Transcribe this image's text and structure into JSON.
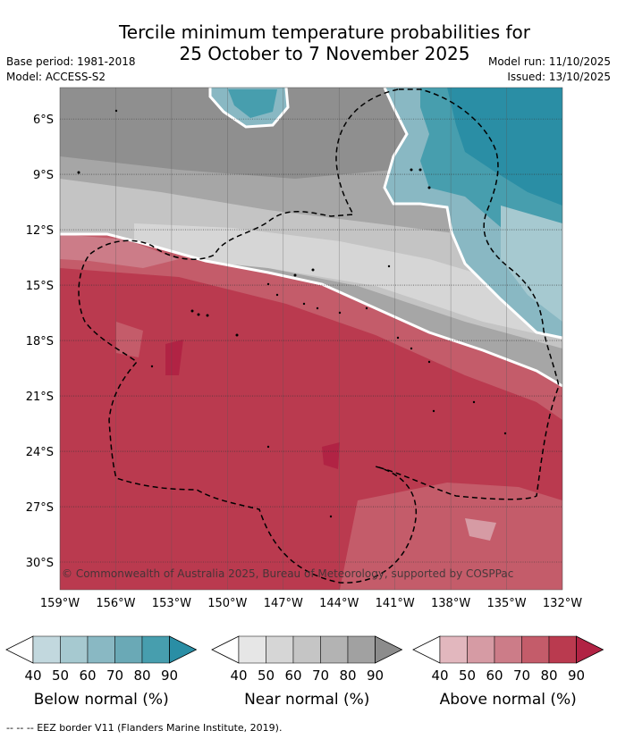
{
  "title_line1": "Tercile minimum temperature probabilities for",
  "title_line2": "25 October to 7 November 2025",
  "base_period": "Base period: 1981-2018",
  "model": "Model: ACCESS-S2",
  "model_run": "Model run: 11/10/2025",
  "issued": "Issued: 13/10/2025",
  "copyright": "© Commonwealth of Australia 2025, Bureau of Meteorology, supported by COSPPac",
  "footer": "--  --  -- EEZ border V11 (Flanders Marine Institute, 2019).",
  "map_data": {
    "lon_labels": [
      "159°W",
      "156°W",
      "153°W",
      "150°W",
      "147°W",
      "144°W",
      "141°W",
      "138°W",
      "135°W",
      "132°W"
    ],
    "lat_labels": [
      "6°S",
      "9°S",
      "12°S",
      "15°S",
      "18°S",
      "21°S",
      "24°S",
      "27°S",
      "30°S"
    ],
    "lon_range": [
      -159,
      -132
    ],
    "lat_range": [
      -31.5,
      -4.3
    ]
  },
  "colorbars": [
    {
      "name": "below",
      "label": "Below normal (%)",
      "ticks": [
        "40",
        "50",
        "60",
        "70",
        "80",
        "90"
      ],
      "colors": [
        "#c2d8de",
        "#a6c9d0",
        "#89b8c3",
        "#6aa9b6",
        "#479eae",
        "#2a8ea5"
      ]
    },
    {
      "name": "near",
      "label": "Near normal (%)",
      "ticks": [
        "40",
        "50",
        "60",
        "70",
        "80",
        "90"
      ],
      "colors": [
        "#e6e6e6",
        "#d6d6d6",
        "#c5c5c5",
        "#b3b3b3",
        "#a1a1a1",
        "#8c8c8c"
      ]
    },
    {
      "name": "above",
      "label": "Above normal (%)",
      "ticks": [
        "40",
        "50",
        "60",
        "70",
        "80",
        "90"
      ],
      "colors": [
        "#e2b7be",
        "#d69ba4",
        "#cc7c88",
        "#c45c6a",
        "#ba3a4f",
        "#b12344"
      ]
    }
  ]
}
